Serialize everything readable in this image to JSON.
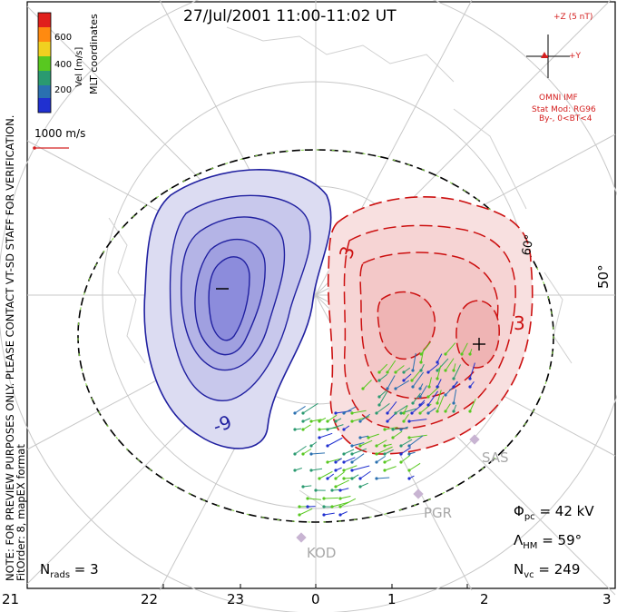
{
  "title": "27/Jul/2001 11:00-11:02 UT",
  "colorbar": {
    "label": "Vel [m/s]",
    "ticks": [
      "600",
      "400",
      "200"
    ],
    "colors": [
      "#e0201c",
      "#ff8a10",
      "#f0d020",
      "#58c820",
      "#2a9a70",
      "#2a70b0",
      "#2030d0"
    ]
  },
  "coordinates_label": "MLT coordinates",
  "velocity_scale": "1000 m/s",
  "imf": {
    "z_label": "+Z (5 nT)",
    "y_label": "+Y",
    "source": "OMNI IMF",
    "model": "Stat Mod: RG96",
    "condition": "By-, 0<BT<4"
  },
  "note_line1": "NOTE: FOR PREVIEW PURPOSES ONLY. PLEASE CONTACT VT-SD STAFF FOR VERIFICATION.",
  "note_line2": "FitOrder: 8, mapEX format",
  "stats": {
    "phi_pc": "42 kV",
    "lambda_hm": "59°",
    "n_vc": "249",
    "n_rads": "3"
  },
  "latitude_labels": [
    "60°",
    "50°"
  ],
  "contours": {
    "negative_label": "-9",
    "positive_label": "3",
    "positive_label2": "3",
    "min_marker": "−",
    "max_marker": "+"
  },
  "stations": [
    "SAS",
    "PGR",
    "KOD"
  ],
  "mlt_ticks": [
    "21",
    "22",
    "23",
    "0",
    "1",
    "2",
    "3"
  ],
  "colors": {
    "negative_line": "#2020a0",
    "positive_line": "#cc1010",
    "station": "#b0a0c0",
    "land": "#d8d8d8"
  }
}
